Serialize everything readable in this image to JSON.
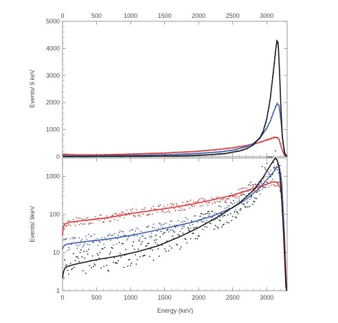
{
  "chart_data": [
    {
      "type": "line",
      "xlabel": "",
      "ylabel": "Events/ 9 keV",
      "xlim": [
        0,
        3300
      ],
      "ylim": [
        0,
        5000
      ],
      "yscale": "linear",
      "xticks": [
        0,
        500,
        1000,
        1500,
        2000,
        2500,
        3000
      ],
      "xtick_labels": [
        "0",
        "500",
        "1000",
        "1500",
        "2000",
        "2500",
        "3000"
      ],
      "yticks": [
        0,
        1000,
        2000,
        3000,
        4000,
        5000
      ],
      "ytick_labels": [
        "0",
        "1000",
        "2000",
        "3000",
        "4000",
        "5000"
      ],
      "top_axis_labels": true,
      "grid": false,
      "series": [
        {
          "color": "#d83a3a",
          "x": [
            0,
            100,
            200,
            500,
            1000,
            1500,
            2000,
            2300,
            2500,
            2700,
            2900,
            3000,
            3100,
            3150,
            3180,
            3220,
            3260,
            3300
          ],
          "y": [
            90,
            85,
            70,
            65,
            95,
            135,
            200,
            270,
            330,
            410,
            530,
            620,
            700,
            720,
            650,
            300,
            40,
            0
          ]
        },
        {
          "color": "#3f5fae",
          "x": [
            0,
            100,
            200,
            500,
            1000,
            1500,
            2000,
            2300,
            2500,
            2700,
            2800,
            2900,
            3000,
            3050,
            3100,
            3150,
            3180,
            3210,
            3240,
            3270,
            3300
          ],
          "y": [
            40,
            30,
            25,
            30,
            45,
            70,
            120,
            175,
            240,
            370,
            480,
            680,
            1050,
            1300,
            1650,
            1950,
            1900,
            1300,
            500,
            80,
            0
          ]
        },
        {
          "color": "#1a1a1a",
          "x": [
            0,
            100,
            500,
            1000,
            1500,
            1800,
            2000,
            2200,
            2400,
            2600,
            2700,
            2800,
            2900,
            2950,
            3000,
            3050,
            3100,
            3130,
            3150,
            3170,
            3190,
            3210,
            3230,
            3260,
            3300
          ],
          "y": [
            3,
            4,
            6,
            11,
            22,
            34,
            50,
            78,
            120,
            210,
            290,
            430,
            700,
            950,
            1400,
            2100,
            3200,
            3900,
            4300,
            4100,
            3000,
            1700,
            700,
            150,
            0
          ]
        }
      ]
    },
    {
      "type": "line",
      "xlabel": "Energy (keV)",
      "ylabel": "Events/ 9keV",
      "xlim": [
        0,
        3300
      ],
      "ylim": [
        1,
        3000
      ],
      "yscale": "log",
      "xticks": [
        0,
        500,
        1000,
        1500,
        2000,
        2500,
        3000
      ],
      "xtick_labels": [
        "0",
        "500",
        "1000",
        "1500",
        "2000",
        "2500",
        "3000"
      ],
      "yticks": [
        1,
        10,
        100,
        1000
      ],
      "ytick_labels": [
        "1",
        "10",
        "100",
        "1000"
      ],
      "grid": false,
      "series": [
        {
          "color": "#d83a3a",
          "x": [
            0,
            10,
            30,
            60,
            100,
            200,
            400,
            700,
            1000,
            1300,
            1600,
            1900,
            2200,
            2500,
            2800,
            3000,
            3100,
            3150,
            3200,
            3230,
            3260,
            3290
          ],
          "y": [
            28,
            45,
            55,
            58,
            62,
            66,
            72,
            84,
            105,
            125,
            150,
            185,
            240,
            320,
            470,
            620,
            720,
            700,
            500,
            200,
            30,
            1.2
          ]
        },
        {
          "color": "#3f5fae",
          "x": [
            0,
            10,
            40,
            100,
            200,
            400,
            700,
            1000,
            1300,
            1600,
            1900,
            2200,
            2500,
            2700,
            2900,
            3000,
            3100,
            3150,
            3190,
            3220,
            3250,
            3280
          ],
          "y": [
            12,
            14,
            16,
            17,
            18,
            20,
            23,
            28,
            36,
            47,
            62,
            90,
            150,
            250,
            500,
            800,
            1300,
            1800,
            1600,
            700,
            60,
            1.2
          ]
        },
        {
          "color": "#1a1a1a",
          "x": [
            0,
            15,
            40,
            100,
            200,
            500,
            800,
            1100,
            1400,
            1700,
            2000,
            2300,
            2600,
            2800,
            2950,
            3050,
            3100,
            3130,
            3150,
            3180,
            3210,
            3240,
            3270,
            3290
          ],
          "y": [
            2.2,
            3.2,
            4.0,
            4.5,
            5.0,
            6.5,
            8.0,
            10.5,
            15,
            25,
            45,
            90,
            200,
            420,
            950,
            1900,
            2600,
            3000,
            2700,
            1800,
            500,
            60,
            4,
            1
          ]
        }
      ]
    }
  ]
}
